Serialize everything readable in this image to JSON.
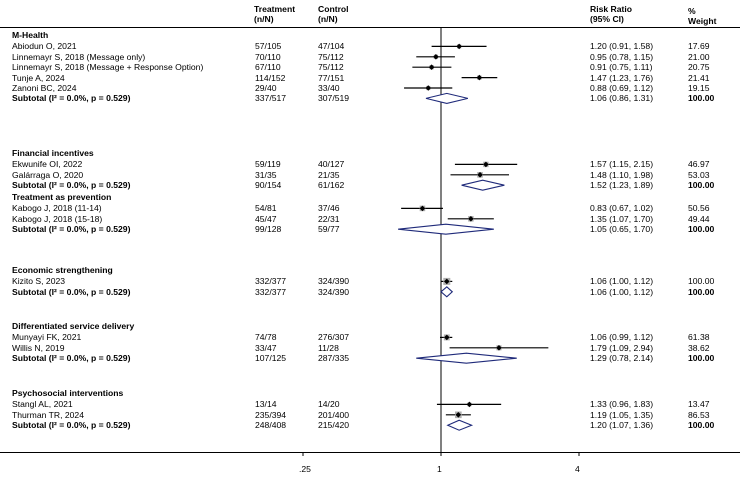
{
  "headers": {
    "treatment": "Treatment",
    "treatment_sub": "(n/N)",
    "control": "Control",
    "control_sub": "(n/N)",
    "rr": "Risk Ratio",
    "rr_sub": "(95% CI)",
    "weight": "%",
    "weight_sub": "Weight"
  },
  "chart_data": {
    "type": "forest",
    "scale": "log",
    "null_value": 1,
    "xticks": [
      0.25,
      1,
      4
    ],
    "xtick_labels": [
      ".25",
      "1",
      "4"
    ],
    "groups": [
      {
        "name": "M-Health",
        "studies": [
          {
            "label": "Abiodun O, 2021",
            "treatment": "57/105",
            "control": "47/104",
            "rr": 1.2,
            "lo": 0.91,
            "hi": 1.58,
            "rr_text": "1.20 (0.91, 1.58)",
            "weight": "17.69"
          },
          {
            "label": "Linnemayr S, 2018 (Message only)",
            "treatment": "70/110",
            "control": "75/112",
            "rr": 0.95,
            "lo": 0.78,
            "hi": 1.15,
            "rr_text": "0.95 (0.78, 1.15)",
            "weight": "21.00"
          },
          {
            "label": "Linnemayr S, 2018 (Message + Response Option)",
            "treatment": "67/110",
            "control": "75/112",
            "rr": 0.91,
            "lo": 0.75,
            "hi": 1.11,
            "rr_text": "0.91 (0.75, 1.11)",
            "weight": "20.75"
          },
          {
            "label": "Tunje A, 2024",
            "treatment": "114/152",
            "control": "77/151",
            "rr": 1.47,
            "lo": 1.23,
            "hi": 1.76,
            "rr_text": "1.47 (1.23, 1.76)",
            "weight": "21.41"
          },
          {
            "label": "Zanoni BC, 2024",
            "treatment": "29/40",
            "control": "33/40",
            "rr": 0.88,
            "lo": 0.69,
            "hi": 1.12,
            "rr_text": "0.88 (0.69, 1.12)",
            "weight": "19.15"
          }
        ],
        "subtotal": {
          "label": "Subtotal  (I² = 0.0%, p = 0.529)",
          "treatment": "337/517",
          "control": "307/519",
          "rr": 1.06,
          "lo": 0.86,
          "hi": 1.31,
          "rr_text": "1.06 (0.86, 1.31)",
          "weight": "100.00"
        }
      },
      {
        "name": "Financial incentives",
        "studies": [
          {
            "label": "Ekwunife OI, 2022",
            "treatment": "59/119",
            "control": "40/127",
            "rr": 1.57,
            "lo": 1.15,
            "hi": 2.15,
            "rr_text": "1.57 (1.15, 2.15)",
            "weight": "46.97"
          },
          {
            "label": "Galárraga O, 2020",
            "treatment": "31/35",
            "control": "21/35",
            "rr": 1.48,
            "lo": 1.1,
            "hi": 1.98,
            "rr_text": "1.48 (1.10, 1.98)",
            "weight": "53.03"
          }
        ],
        "subtotal": {
          "label": "Subtotal  (I² = 0.0%, p = 0.529)",
          "treatment": "90/154",
          "control": "61/162",
          "rr": 1.52,
          "lo": 1.23,
          "hi": 1.89,
          "rr_text": "1.52 (1.23, 1.89)",
          "weight": "100.00"
        }
      },
      {
        "name": "Treatment as prevention",
        "studies": [
          {
            "label": "Kabogo J, 2018 (11-14)",
            "treatment": "54/81",
            "control": "37/46",
            "rr": 0.83,
            "lo": 0.67,
            "hi": 1.02,
            "rr_text": "0.83 (0.67, 1.02)",
            "weight": "50.56"
          },
          {
            "label": "Kabogo J, 2018 (15-18)",
            "treatment": "45/47",
            "control": "22/31",
            "rr": 1.35,
            "lo": 1.07,
            "hi": 1.7,
            "rr_text": "1.35 (1.07, 1.70)",
            "weight": "49.44"
          }
        ],
        "subtotal": {
          "label": "Subtotal  (I² = 0.0%, p = 0.529)",
          "treatment": "99/128",
          "control": "59/77",
          "rr": 1.05,
          "lo": 0.65,
          "hi": 1.7,
          "rr_text": "1.05 (0.65, 1.70)",
          "weight": "100.00"
        }
      },
      {
        "name": "Economic strengthening",
        "studies": [
          {
            "label": "Kizito S, 2023",
            "treatment": "332/377",
            "control": "324/390",
            "rr": 1.06,
            "lo": 1.0,
            "hi": 1.12,
            "rr_text": "1.06 (1.00, 1.12)",
            "weight": "100.00"
          }
        ],
        "subtotal": {
          "label": "Subtotal  (I² = 0.0%, p = 0.529)",
          "treatment": "332/377",
          "control": "324/390",
          "rr": 1.06,
          "lo": 1.0,
          "hi": 1.12,
          "rr_text": "1.06 (1.00, 1.12)",
          "weight": "100.00"
        }
      },
      {
        "name": "Differentiated service delivery",
        "studies": [
          {
            "label": "Munyayi FK, 2021",
            "treatment": "74/78",
            "control": "276/307",
            "rr": 1.06,
            "lo": 0.99,
            "hi": 1.12,
            "rr_text": "1.06 (0.99, 1.12)",
            "weight": "61.38"
          },
          {
            "label": "Willis N, 2019",
            "treatment": "33/47",
            "control": "11/28",
            "rr": 1.79,
            "lo": 1.09,
            "hi": 2.94,
            "rr_text": "1.79 (1.09, 2.94)",
            "weight": "38.62"
          }
        ],
        "subtotal": {
          "label": "Subtotal  (I² = 0.0%, p = 0.529)",
          "treatment": "107/125",
          "control": "287/335",
          "rr": 1.29,
          "lo": 0.78,
          "hi": 2.14,
          "rr_text": "1.29 (0.78, 2.14)",
          "weight": "100.00"
        }
      },
      {
        "name": "Psychosocial interventions",
        "studies": [
          {
            "label": "Stangl AL, 2021",
            "treatment": "13/14",
            "control": "14/20",
            "rr": 1.33,
            "lo": 0.96,
            "hi": 1.83,
            "rr_text": "1.33 (0.96, 1.83)",
            "weight": "13.47"
          },
          {
            "label": "Thurman TR, 2024",
            "treatment": "235/394",
            "control": "201/400",
            "rr": 1.19,
            "lo": 1.05,
            "hi": 1.35,
            "rr_text": "1.19 (1.05, 1.35)",
            "weight": "86.53"
          }
        ],
        "subtotal": {
          "label": "Subtotal  (I² = 0.0%, p = 0.529)",
          "treatment": "248/408",
          "control": "215/420",
          "rr": 1.2,
          "lo": 1.07,
          "hi": 1.36,
          "rr_text": "1.20 (1.07, 1.36)",
          "weight": "100.00"
        }
      }
    ]
  }
}
